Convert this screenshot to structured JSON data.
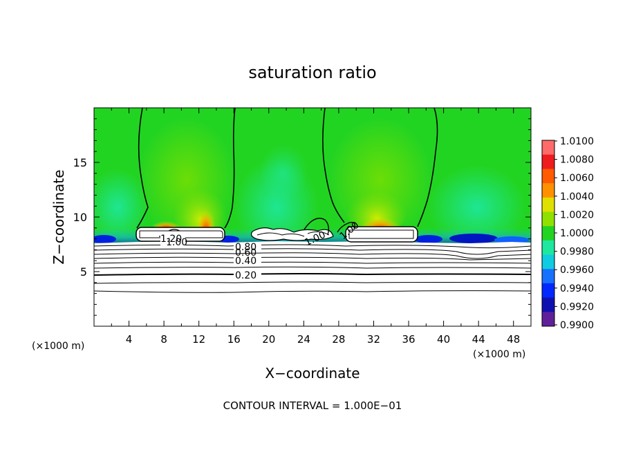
{
  "chart_data": {
    "type": "heatmap",
    "title": "saturation ratio",
    "xlabel": "X−coordinate",
    "ylabel": "Z−coordinate",
    "x_unit_left": "(×1000 m)",
    "x_unit_right": "(×1000 m)",
    "xlim": [
      0,
      50
    ],
    "ylim": [
      0,
      20
    ],
    "xticks": [
      4,
      8,
      12,
      16,
      20,
      24,
      28,
      32,
      36,
      40,
      44,
      48
    ],
    "yticks": [
      5,
      10,
      15
    ],
    "footer": "CONTOUR INTERVAL = 1.000E−01",
    "colorbar": {
      "ticks": [
        "1.0100",
        "1.0080",
        "1.0060",
        "1.0040",
        "1.0020",
        "1.0000",
        "0.9980",
        "0.9960",
        "0.9940",
        "0.9920",
        "0.9900"
      ],
      "colors": [
        "#ff6a6a",
        "#ee1c1c",
        "#ff5a00",
        "#ff9000",
        "#e0e000",
        "#90e000",
        "#22d422",
        "#1ee8a0",
        "#10cce0",
        "#1870ff",
        "#0028ff",
        "#1010b0",
        "#60209a"
      ]
    },
    "contour_labels": [
      "1.20",
      "1.00",
      "0.80",
      "0.60",
      "0.40",
      "0.20",
      "1.00",
      "1.00"
    ],
    "grid": false
  }
}
